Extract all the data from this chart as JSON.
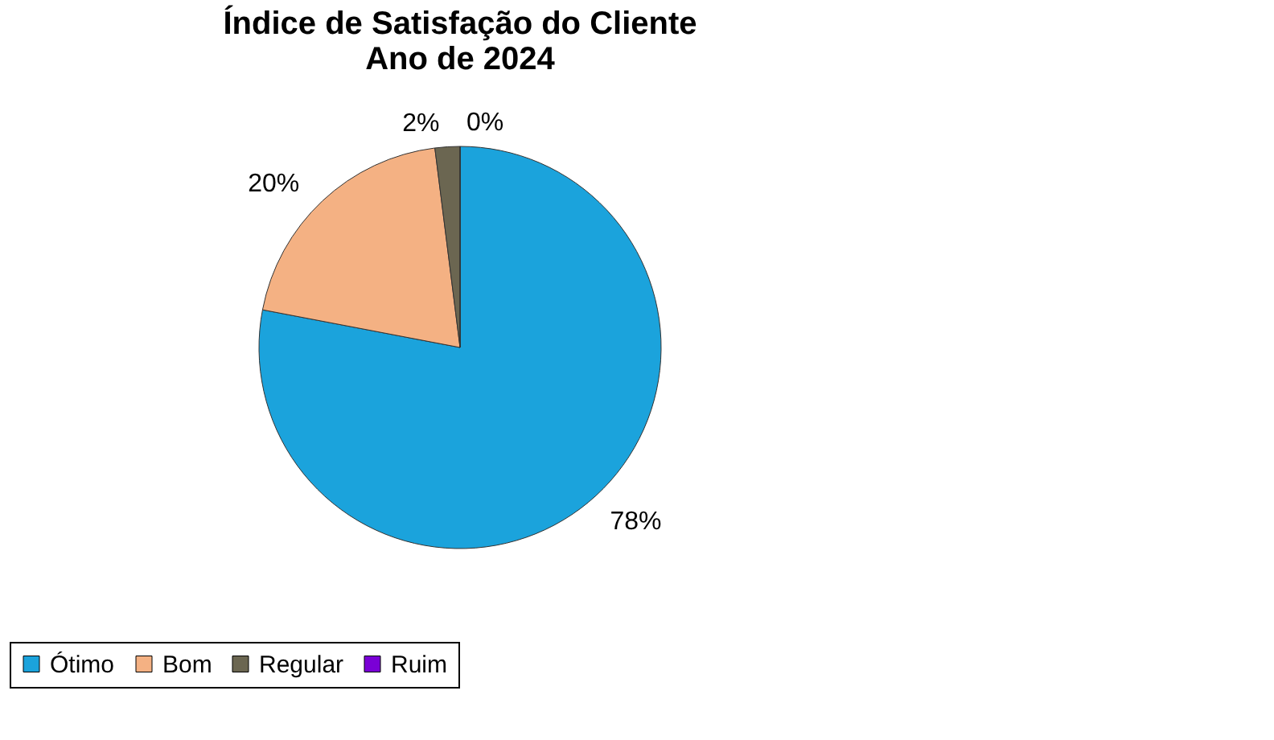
{
  "chart_data": {
    "type": "pie",
    "title": [
      "Índice de Satisfação do Cliente",
      "Ano de 2024"
    ],
    "categories": [
      "Ótimo",
      "Bom",
      "Regular",
      "Ruim"
    ],
    "values": [
      78,
      20,
      2,
      0
    ],
    "value_labels": [
      "78%",
      "20%",
      "2%",
      "0%"
    ],
    "colors": [
      "#1ba3dc",
      "#f4b183",
      "#6b6651",
      "#7a00d6"
    ],
    "legend": "bottom"
  }
}
